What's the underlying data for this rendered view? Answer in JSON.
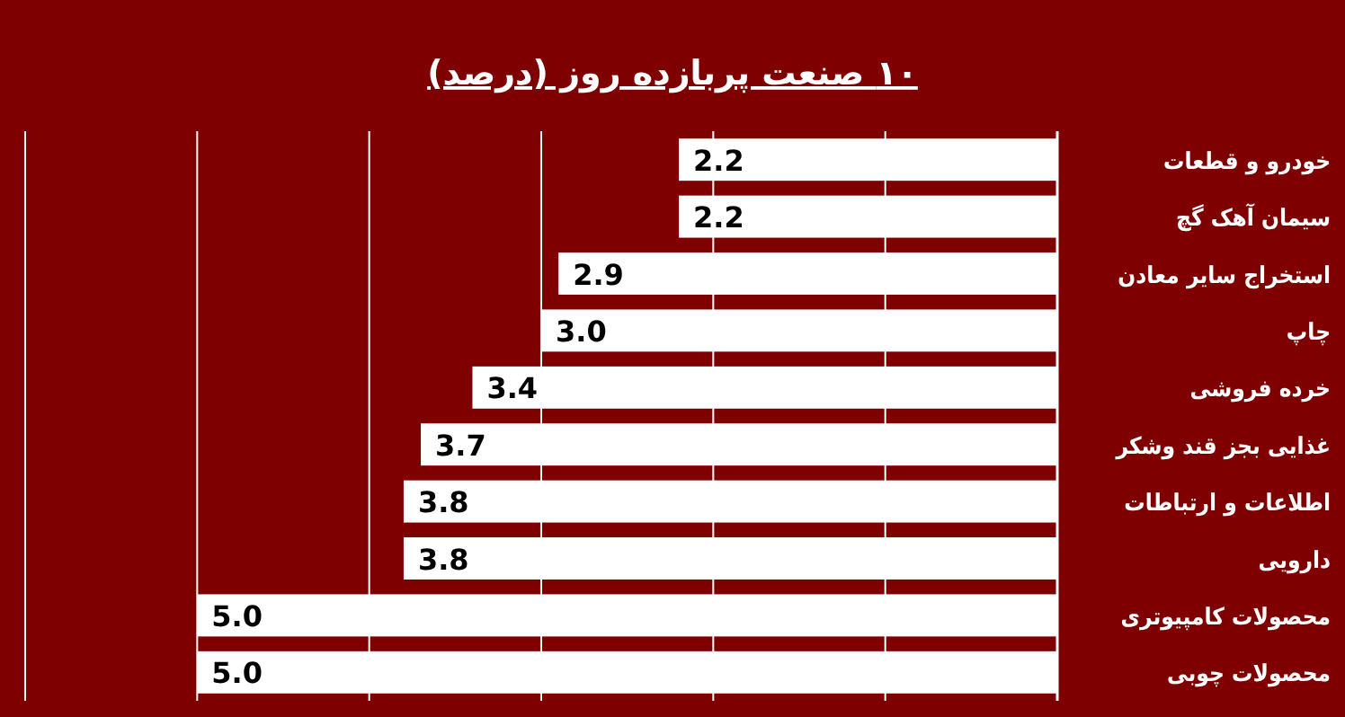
{
  "chart_data": {
    "type": "bar",
    "orientation": "horizontal",
    "title": "۱۰ صنعت پربازده روز (درصد)",
    "categories": [
      "خودرو و قطعات",
      "سیمان آهک گچ",
      "استخراج سایر معادن",
      "چاپ",
      "خرده فروشی",
      "غذایی بجز قند وشکر",
      "اطلاعات و ارتباطات",
      "دارویی",
      "محصولات کامپیوتری",
      "محصولات چوبی"
    ],
    "values": [
      2.2,
      2.2,
      2.9,
      3.0,
      3.4,
      3.7,
      3.8,
      3.8,
      5.0,
      5.0
    ],
    "value_labels": [
      "2.2",
      "2.2",
      "2.9",
      "3.0",
      "3.4",
      "3.7",
      "3.8",
      "3.8",
      "5.0",
      "5.0"
    ],
    "color": "#ffffff",
    "xlim": [
      6,
      0
    ],
    "xticks": [
      {
        "value": 0,
        "label": null
      },
      {
        "value": 1,
        "label": null
      },
      {
        "value": 2,
        "label": null
      },
      {
        "value": 3,
        "label": null
      },
      {
        "value": 4,
        "label": null
      },
      {
        "value": 5,
        "label": null
      },
      {
        "value": 6,
        "label": null
      }
    ],
    "grid": "x",
    "tick_labels": "y"
  }
}
